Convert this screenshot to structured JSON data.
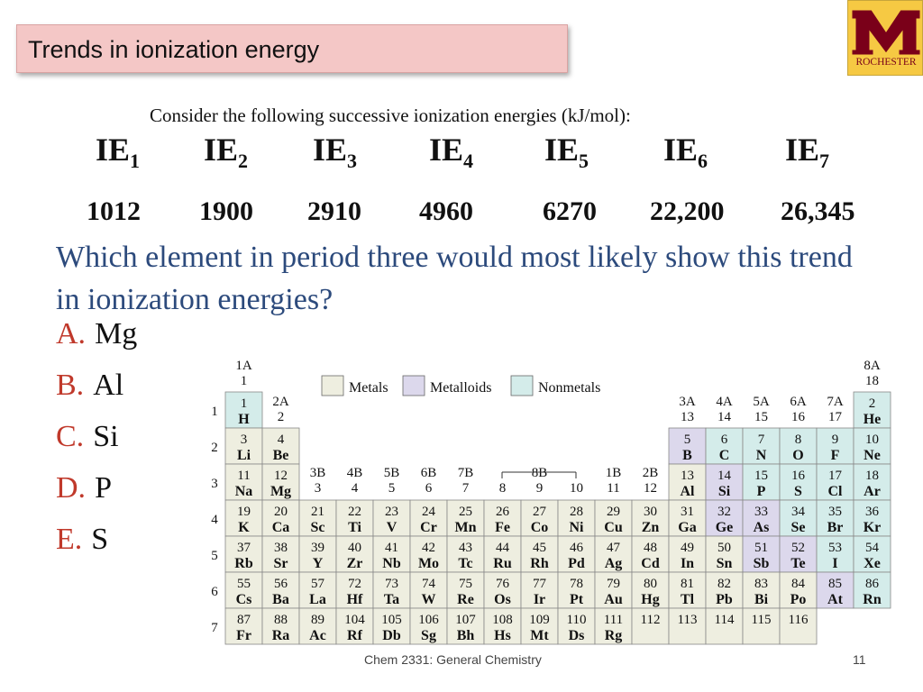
{
  "header": {
    "title": "Trends in ionization energy",
    "logo_text": "ROCHESTER"
  },
  "intro": "Consider the following successive ionization energies (kJ/mol):",
  "ie": [
    {
      "label": "IE",
      "sub": "1",
      "value": "1012"
    },
    {
      "label": "IE",
      "sub": "2",
      "value": "1900"
    },
    {
      "label": "IE",
      "sub": "3",
      "value": "2910"
    },
    {
      "label": "IE",
      "sub": "4",
      "value": "4960"
    },
    {
      "label": "IE",
      "sub": "5",
      "value": "6270"
    },
    {
      "label": "IE",
      "sub": "6",
      "value": "22,200"
    },
    {
      "label": "IE",
      "sub": "7",
      "value": "26,345"
    }
  ],
  "question": "Which element in period three would most likely show this trend in ionization energies?",
  "options": [
    {
      "letter": "A.",
      "text": "Mg"
    },
    {
      "letter": "B.",
      "text": "Al"
    },
    {
      "letter": "C.",
      "text": "Si"
    },
    {
      "letter": "D.",
      "text": "P"
    },
    {
      "letter": "E.",
      "text": "S"
    }
  ],
  "periodic_table": {
    "legend": [
      {
        "label": "Metals",
        "color": "#eeeee0"
      },
      {
        "label": "Metalloids",
        "color": "#dcd8ec"
      },
      {
        "label": "Nonmetals",
        "color": "#d4ecea"
      }
    ],
    "group_labels": [
      {
        "top": "1A",
        "bottom": "1"
      },
      {
        "top": "2A",
        "bottom": "2"
      },
      {
        "top": "3B",
        "bottom": "3"
      },
      {
        "top": "4B",
        "bottom": "4"
      },
      {
        "top": "5B",
        "bottom": "5"
      },
      {
        "top": "6B",
        "bottom": "6"
      },
      {
        "top": "7B",
        "bottom": "7"
      },
      {
        "top": "",
        "bottom": "8"
      },
      {
        "top": "8B",
        "bottom": "9"
      },
      {
        "top": "",
        "bottom": "10"
      },
      {
        "top": "1B",
        "bottom": "11"
      },
      {
        "top": "2B",
        "bottom": "12"
      },
      {
        "top": "3A",
        "bottom": "13"
      },
      {
        "top": "4A",
        "bottom": "14"
      },
      {
        "top": "5A",
        "bottom": "15"
      },
      {
        "top": "6A",
        "bottom": "16"
      },
      {
        "top": "7A",
        "bottom": "17"
      },
      {
        "top": "8A",
        "bottom": "18"
      }
    ],
    "period_labels": [
      "1",
      "2",
      "3",
      "4",
      "5",
      "6",
      "7"
    ],
    "elements": [
      {
        "n": "1",
        "s": "H",
        "p": 1,
        "g": 1,
        "t": "nonmetal"
      },
      {
        "n": "2",
        "s": "He",
        "p": 1,
        "g": 18,
        "t": "nonmetal"
      },
      {
        "n": "3",
        "s": "Li",
        "p": 2,
        "g": 1,
        "t": "metal"
      },
      {
        "n": "4",
        "s": "Be",
        "p": 2,
        "g": 2,
        "t": "metal"
      },
      {
        "n": "5",
        "s": "B",
        "p": 2,
        "g": 13,
        "t": "metalloid"
      },
      {
        "n": "6",
        "s": "C",
        "p": 2,
        "g": 14,
        "t": "nonmetal"
      },
      {
        "n": "7",
        "s": "N",
        "p": 2,
        "g": 15,
        "t": "nonmetal"
      },
      {
        "n": "8",
        "s": "O",
        "p": 2,
        "g": 16,
        "t": "nonmetal"
      },
      {
        "n": "9",
        "s": "F",
        "p": 2,
        "g": 17,
        "t": "nonmetal"
      },
      {
        "n": "10",
        "s": "Ne",
        "p": 2,
        "g": 18,
        "t": "nonmetal"
      },
      {
        "n": "11",
        "s": "Na",
        "p": 3,
        "g": 1,
        "t": "metal"
      },
      {
        "n": "12",
        "s": "Mg",
        "p": 3,
        "g": 2,
        "t": "metal"
      },
      {
        "n": "13",
        "s": "Al",
        "p": 3,
        "g": 13,
        "t": "metal"
      },
      {
        "n": "14",
        "s": "Si",
        "p": 3,
        "g": 14,
        "t": "metalloid"
      },
      {
        "n": "15",
        "s": "P",
        "p": 3,
        "g": 15,
        "t": "nonmetal"
      },
      {
        "n": "16",
        "s": "S",
        "p": 3,
        "g": 16,
        "t": "nonmetal"
      },
      {
        "n": "17",
        "s": "Cl",
        "p": 3,
        "g": 17,
        "t": "nonmetal"
      },
      {
        "n": "18",
        "s": "Ar",
        "p": 3,
        "g": 18,
        "t": "nonmetal"
      },
      {
        "n": "19",
        "s": "K",
        "p": 4,
        "g": 1,
        "t": "metal"
      },
      {
        "n": "20",
        "s": "Ca",
        "p": 4,
        "g": 2,
        "t": "metal"
      },
      {
        "n": "21",
        "s": "Sc",
        "p": 4,
        "g": 3,
        "t": "metal"
      },
      {
        "n": "22",
        "s": "Ti",
        "p": 4,
        "g": 4,
        "t": "metal"
      },
      {
        "n": "23",
        "s": "V",
        "p": 4,
        "g": 5,
        "t": "metal"
      },
      {
        "n": "24",
        "s": "Cr",
        "p": 4,
        "g": 6,
        "t": "metal"
      },
      {
        "n": "25",
        "s": "Mn",
        "p": 4,
        "g": 7,
        "t": "metal"
      },
      {
        "n": "26",
        "s": "Fe",
        "p": 4,
        "g": 8,
        "t": "metal"
      },
      {
        "n": "27",
        "s": "Co",
        "p": 4,
        "g": 9,
        "t": "metal"
      },
      {
        "n": "28",
        "s": "Ni",
        "p": 4,
        "g": 10,
        "t": "metal"
      },
      {
        "n": "29",
        "s": "Cu",
        "p": 4,
        "g": 11,
        "t": "metal"
      },
      {
        "n": "30",
        "s": "Zn",
        "p": 4,
        "g": 12,
        "t": "metal"
      },
      {
        "n": "31",
        "s": "Ga",
        "p": 4,
        "g": 13,
        "t": "metal"
      },
      {
        "n": "32",
        "s": "Ge",
        "p": 4,
        "g": 14,
        "t": "metalloid"
      },
      {
        "n": "33",
        "s": "As",
        "p": 4,
        "g": 15,
        "t": "metalloid"
      },
      {
        "n": "34",
        "s": "Se",
        "p": 4,
        "g": 16,
        "t": "nonmetal"
      },
      {
        "n": "35",
        "s": "Br",
        "p": 4,
        "g": 17,
        "t": "nonmetal"
      },
      {
        "n": "36",
        "s": "Kr",
        "p": 4,
        "g": 18,
        "t": "nonmetal"
      },
      {
        "n": "37",
        "s": "Rb",
        "p": 5,
        "g": 1,
        "t": "metal"
      },
      {
        "n": "38",
        "s": "Sr",
        "p": 5,
        "g": 2,
        "t": "metal"
      },
      {
        "n": "39",
        "s": "Y",
        "p": 5,
        "g": 3,
        "t": "metal"
      },
      {
        "n": "40",
        "s": "Zr",
        "p": 5,
        "g": 4,
        "t": "metal"
      },
      {
        "n": "41",
        "s": "Nb",
        "p": 5,
        "g": 5,
        "t": "metal"
      },
      {
        "n": "42",
        "s": "Mo",
        "p": 5,
        "g": 6,
        "t": "metal"
      },
      {
        "n": "43",
        "s": "Tc",
        "p": 5,
        "g": 7,
        "t": "metal"
      },
      {
        "n": "44",
        "s": "Ru",
        "p": 5,
        "g": 8,
        "t": "metal"
      },
      {
        "n": "45",
        "s": "Rh",
        "p": 5,
        "g": 9,
        "t": "metal"
      },
      {
        "n": "46",
        "s": "Pd",
        "p": 5,
        "g": 10,
        "t": "metal"
      },
      {
        "n": "47",
        "s": "Ag",
        "p": 5,
        "g": 11,
        "t": "metal"
      },
      {
        "n": "48",
        "s": "Cd",
        "p": 5,
        "g": 12,
        "t": "metal"
      },
      {
        "n": "49",
        "s": "In",
        "p": 5,
        "g": 13,
        "t": "metal"
      },
      {
        "n": "50",
        "s": "Sn",
        "p": 5,
        "g": 14,
        "t": "metal"
      },
      {
        "n": "51",
        "s": "Sb",
        "p": 5,
        "g": 15,
        "t": "metalloid"
      },
      {
        "n": "52",
        "s": "Te",
        "p": 5,
        "g": 16,
        "t": "metalloid"
      },
      {
        "n": "53",
        "s": "I",
        "p": 5,
        "g": 17,
        "t": "nonmetal"
      },
      {
        "n": "54",
        "s": "Xe",
        "p": 5,
        "g": 18,
        "t": "nonmetal"
      },
      {
        "n": "55",
        "s": "Cs",
        "p": 6,
        "g": 1,
        "t": "metal"
      },
      {
        "n": "56",
        "s": "Ba",
        "p": 6,
        "g": 2,
        "t": "metal"
      },
      {
        "n": "57",
        "s": "La",
        "p": 6,
        "g": 3,
        "t": "metal"
      },
      {
        "n": "72",
        "s": "Hf",
        "p": 6,
        "g": 4,
        "t": "metal"
      },
      {
        "n": "73",
        "s": "Ta",
        "p": 6,
        "g": 5,
        "t": "metal"
      },
      {
        "n": "74",
        "s": "W",
        "p": 6,
        "g": 6,
        "t": "metal"
      },
      {
        "n": "75",
        "s": "Re",
        "p": 6,
        "g": 7,
        "t": "metal"
      },
      {
        "n": "76",
        "s": "Os",
        "p": 6,
        "g": 8,
        "t": "metal"
      },
      {
        "n": "77",
        "s": "Ir",
        "p": 6,
        "g": 9,
        "t": "metal"
      },
      {
        "n": "78",
        "s": "Pt",
        "p": 6,
        "g": 10,
        "t": "metal"
      },
      {
        "n": "79",
        "s": "Au",
        "p": 6,
        "g": 11,
        "t": "metal"
      },
      {
        "n": "80",
        "s": "Hg",
        "p": 6,
        "g": 12,
        "t": "metal"
      },
      {
        "n": "81",
        "s": "Tl",
        "p": 6,
        "g": 13,
        "t": "metal"
      },
      {
        "n": "82",
        "s": "Pb",
        "p": 6,
        "g": 14,
        "t": "metal"
      },
      {
        "n": "83",
        "s": "Bi",
        "p": 6,
        "g": 15,
        "t": "metal"
      },
      {
        "n": "84",
        "s": "Po",
        "p": 6,
        "g": 16,
        "t": "metal"
      },
      {
        "n": "85",
        "s": "At",
        "p": 6,
        "g": 17,
        "t": "metalloid"
      },
      {
        "n": "86",
        "s": "Rn",
        "p": 6,
        "g": 18,
        "t": "nonmetal"
      },
      {
        "n": "87",
        "s": "Fr",
        "p": 7,
        "g": 1,
        "t": "metal"
      },
      {
        "n": "88",
        "s": "Ra",
        "p": 7,
        "g": 2,
        "t": "metal"
      },
      {
        "n": "89",
        "s": "Ac",
        "p": 7,
        "g": 3,
        "t": "metal"
      },
      {
        "n": "104",
        "s": "Rf",
        "p": 7,
        "g": 4,
        "t": "metal"
      },
      {
        "n": "105",
        "s": "Db",
        "p": 7,
        "g": 5,
        "t": "metal"
      },
      {
        "n": "106",
        "s": "Sg",
        "p": 7,
        "g": 6,
        "t": "metal"
      },
      {
        "n": "107",
        "s": "Bh",
        "p": 7,
        "g": 7,
        "t": "metal"
      },
      {
        "n": "108",
        "s": "Hs",
        "p": 7,
        "g": 8,
        "t": "metal"
      },
      {
        "n": "109",
        "s": "Mt",
        "p": 7,
        "g": 9,
        "t": "metal"
      },
      {
        "n": "110",
        "s": "Ds",
        "p": 7,
        "g": 10,
        "t": "metal"
      },
      {
        "n": "111",
        "s": "Rg",
        "p": 7,
        "g": 11,
        "t": "metal"
      },
      {
        "n": "112",
        "s": "",
        "p": 7,
        "g": 12,
        "t": "metal"
      },
      {
        "n": "113",
        "s": "",
        "p": 7,
        "g": 13,
        "t": "metal"
      },
      {
        "n": "114",
        "s": "",
        "p": 7,
        "g": 14,
        "t": "metal"
      },
      {
        "n": "115",
        "s": "",
        "p": 7,
        "g": 15,
        "t": "metal"
      },
      {
        "n": "116",
        "s": "",
        "p": 7,
        "g": 16,
        "t": "metal"
      }
    ]
  },
  "footer": {
    "course": "Chem 2331: General Chemistry",
    "page": "11"
  }
}
